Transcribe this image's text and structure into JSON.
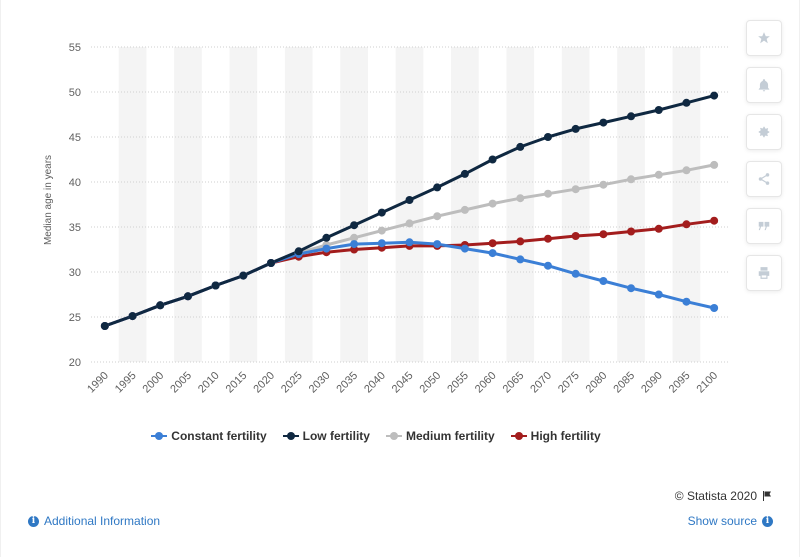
{
  "chart_data": {
    "type": "line",
    "ylabel": "Median age in years",
    "xlabel": "",
    "ylim": [
      20,
      55
    ],
    "yticks": [
      20,
      25,
      30,
      35,
      40,
      45,
      50,
      55
    ],
    "grid": "horizontal dotted, alternating column bands",
    "legend": "bottom-center",
    "x": [
      "1990",
      "1995",
      "2000",
      "2005",
      "2010",
      "2015",
      "2020",
      "2025",
      "2030",
      "2035",
      "2040",
      "2045",
      "2050",
      "2055",
      "2060",
      "2065",
      "2070",
      "2075",
      "2080",
      "2085",
      "2090",
      "2095",
      "2100"
    ],
    "series": [
      {
        "name": "Medium fertility",
        "color": "#bdbdbd",
        "values": [
          24.0,
          25.1,
          26.3,
          27.3,
          28.5,
          29.6,
          31.0,
          32.1,
          33.0,
          33.8,
          34.6,
          35.4,
          36.2,
          36.9,
          37.6,
          38.2,
          38.7,
          39.2,
          39.7,
          40.3,
          40.8,
          41.3,
          41.9
        ]
      },
      {
        "name": "High fertility",
        "color": "#a31d1d",
        "values": [
          24.0,
          25.1,
          26.3,
          27.3,
          28.5,
          29.6,
          31.0,
          31.7,
          32.2,
          32.5,
          32.7,
          32.9,
          32.9,
          33.0,
          33.2,
          33.4,
          33.7,
          34.0,
          34.2,
          34.5,
          34.8,
          35.3,
          35.7
        ]
      },
      {
        "name": "Constant fertility",
        "color": "#3b7fd6",
        "values": [
          24.0,
          25.1,
          26.3,
          27.3,
          28.5,
          29.6,
          31.0,
          32.0,
          32.6,
          33.1,
          33.2,
          33.3,
          33.1,
          32.6,
          32.1,
          31.4,
          30.7,
          29.8,
          29.0,
          28.2,
          27.5,
          26.7,
          26.0
        ]
      },
      {
        "name": "Low fertility",
        "color": "#0f2841",
        "values": [
          24.0,
          25.1,
          26.3,
          27.3,
          28.5,
          29.6,
          31.0,
          32.3,
          33.8,
          35.2,
          36.6,
          38.0,
          39.4,
          40.9,
          42.5,
          43.9,
          45.0,
          45.9,
          46.6,
          47.3,
          48.0,
          48.8,
          49.6
        ]
      }
    ],
    "legend_order": [
      "Constant fertility",
      "Low fertility",
      "Medium fertility",
      "High fertility"
    ]
  },
  "toolbar": {
    "items": [
      {
        "icon": "star-icon"
      },
      {
        "icon": "bell-icon"
      },
      {
        "icon": "gear-icon"
      },
      {
        "icon": "share-icon"
      },
      {
        "icon": "quote-icon"
      },
      {
        "icon": "print-icon"
      }
    ]
  },
  "footer": {
    "credit": "© Statista 2020",
    "additional_info": "Additional Information",
    "show_source": "Show source"
  },
  "colors": {
    "link": "#2f78c4",
    "grid": "#cfcfcf",
    "band": "#f4f4f4",
    "axis_text": "#606060"
  }
}
